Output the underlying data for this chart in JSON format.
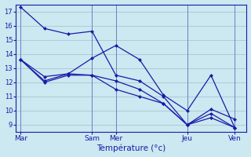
{
  "background_color": "#cce8f0",
  "grid_color": "#aaccd8",
  "line_color": "#1a1aaa",
  "xlabel": "Température (°c)",
  "ylim": [
    8.5,
    17.5
  ],
  "yticks": [
    9,
    10,
    11,
    12,
    13,
    14,
    15,
    16,
    17
  ],
  "xtick_labels": [
    "Mar",
    "Sam",
    "Mer",
    "Jeu",
    "Ven"
  ],
  "xtick_positions": [
    0,
    3,
    4,
    7,
    9
  ],
  "num_points": 10,
  "series": [
    [
      17.3,
      15.8,
      15.4,
      15.6,
      12.5,
      12.1,
      11.0,
      9.0,
      9.5,
      8.8
    ],
    [
      13.6,
      12.4,
      12.6,
      13.7,
      14.6,
      13.6,
      11.1,
      10.0,
      12.5,
      8.8
    ],
    [
      13.6,
      12.1,
      12.6,
      12.5,
      12.1,
      11.5,
      10.5,
      9.0,
      10.1,
      9.4
    ],
    [
      13.6,
      12.0,
      12.5,
      12.5,
      11.5,
      11.0,
      10.5,
      9.0,
      9.8,
      8.8
    ]
  ]
}
